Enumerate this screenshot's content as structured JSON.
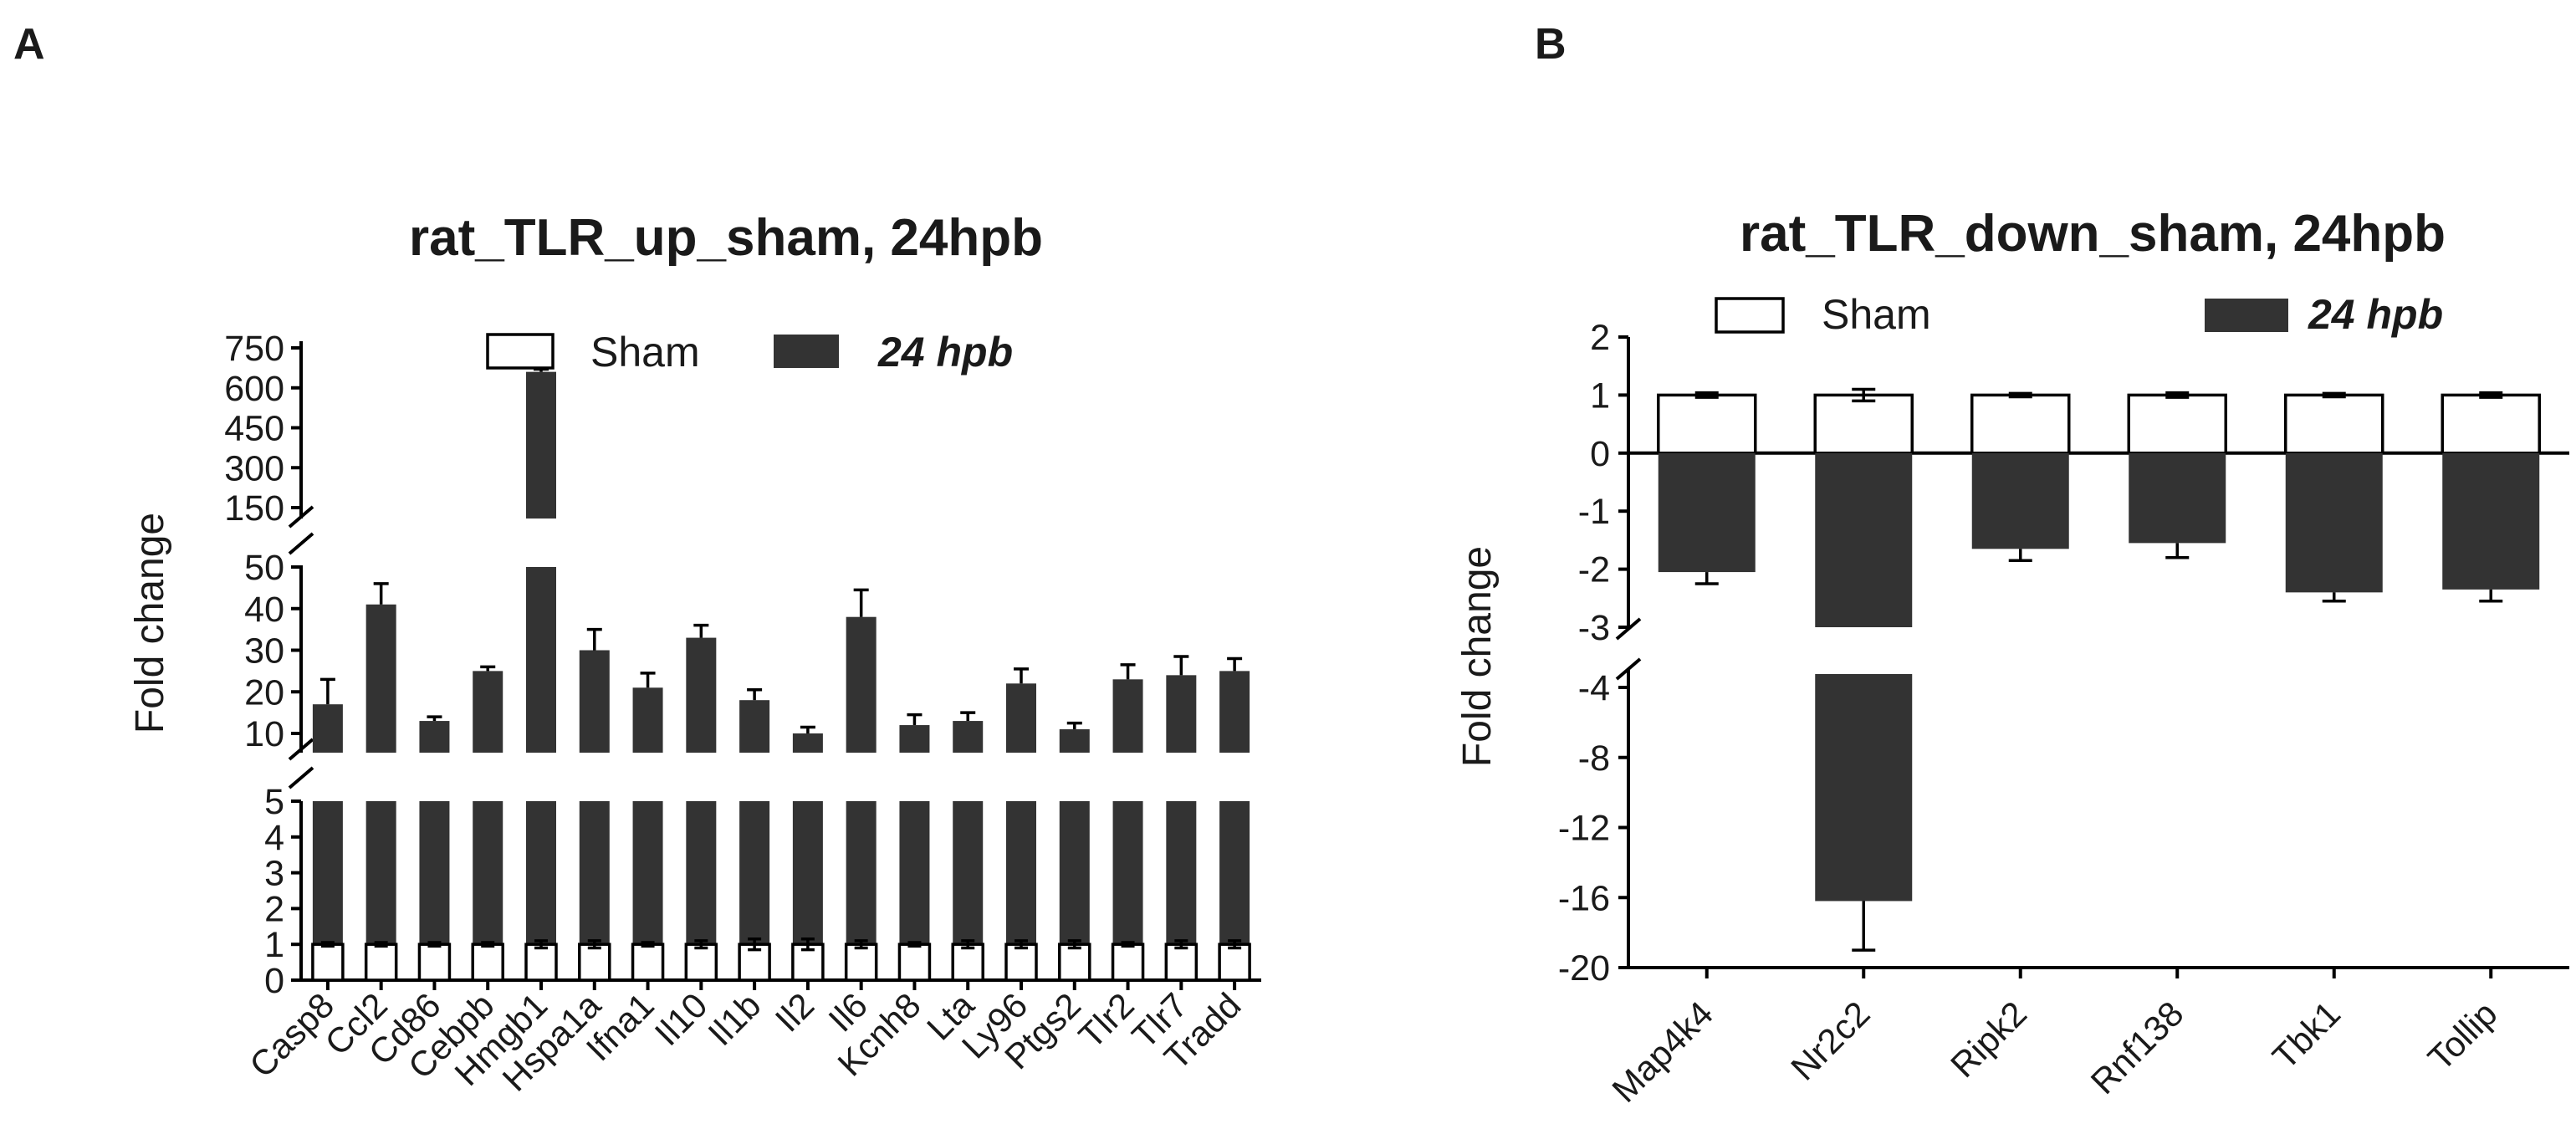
{
  "panels": {
    "a": {
      "letter": "A"
    },
    "b": {
      "letter": "B"
    }
  },
  "legend": {
    "sham": "Sham",
    "hpb": "24 hpb"
  },
  "colors": {
    "sham_fill": "#ffffff",
    "hpb_fill": "#333333",
    "axis": "#000000"
  },
  "chart_data": [
    {
      "type": "bar",
      "title": "rat_TLR_up_sham, 24hpb",
      "xlabel": "",
      "ylabel": "Fold change",
      "y_axis_broken": true,
      "y_segments": [
        {
          "range": [
            0,
            5
          ],
          "ticks": [
            0,
            1,
            2,
            3,
            4,
            5
          ]
        },
        {
          "range": [
            5,
            50
          ],
          "ticks": [
            10,
            20,
            30,
            40,
            50
          ]
        },
        {
          "range": [
            100,
            750
          ],
          "ticks": [
            150,
            300,
            450,
            600,
            750
          ]
        }
      ],
      "categories": [
        "Casp8",
        "Ccl2",
        "Cd86",
        "Cebpb",
        "Hmgb1",
        "Hspa1a",
        "Ifna1",
        "Il10",
        "Il1b",
        "Il2",
        "Il6",
        "Kcnh8",
        "Lta",
        "Ly96",
        "Ptgs2",
        "Tlr2",
        "Tlr7",
        "Tradd"
      ],
      "series": [
        {
          "name": "Sham",
          "values": [
            1,
            1,
            1,
            1,
            1,
            1,
            1,
            1,
            1,
            1,
            1,
            1,
            1,
            1,
            1,
            1,
            1,
            1
          ],
          "errors": [
            0.05,
            0.05,
            0.05,
            0.05,
            0.1,
            0.1,
            0.05,
            0.1,
            0.15,
            0.15,
            0.1,
            0.05,
            0.1,
            0.1,
            0.1,
            0.05,
            0.1,
            0.1
          ]
        },
        {
          "name": "24 hpb",
          "values": [
            17,
            41,
            13,
            25,
            660,
            30,
            21,
            33,
            18,
            10,
            38,
            12,
            13,
            22,
            11,
            23,
            24,
            25
          ],
          "errors": [
            6,
            5,
            1,
            1,
            10,
            5,
            3.5,
            3,
            2.5,
            1.5,
            6.5,
            2.5,
            2,
            3.5,
            1.5,
            3.5,
            4.5,
            3
          ]
        }
      ],
      "legend_position": "top"
    },
    {
      "type": "bar",
      "title": "rat_TLR_down_sham, 24hpb",
      "xlabel": "",
      "ylabel": "Fold change",
      "y_axis_broken": true,
      "y_segments": [
        {
          "range": [
            -3,
            2
          ],
          "ticks": [
            2,
            1,
            0,
            -1,
            -2,
            -3
          ]
        },
        {
          "range": [
            -20,
            -3
          ],
          "ticks": [
            -4,
            -8,
            -12,
            -16,
            -20
          ]
        }
      ],
      "categories": [
        "Map4k4",
        "Nr2c2",
        "Ripk2",
        "Rnf138",
        "Tbk1",
        "Tollip"
      ],
      "series": [
        {
          "name": "Sham",
          "values": [
            1,
            1,
            1,
            1,
            1,
            1
          ],
          "errors": [
            0.04,
            0.1,
            0.03,
            0.04,
            0.03,
            0.04
          ]
        },
        {
          "name": "24 hpb",
          "values": [
            -2.05,
            -16.2,
            -1.65,
            -1.55,
            -2.4,
            -2.35
          ],
          "errors": [
            0.2,
            2.8,
            0.2,
            0.25,
            0.15,
            0.2
          ]
        }
      ],
      "legend_position": "top"
    }
  ]
}
